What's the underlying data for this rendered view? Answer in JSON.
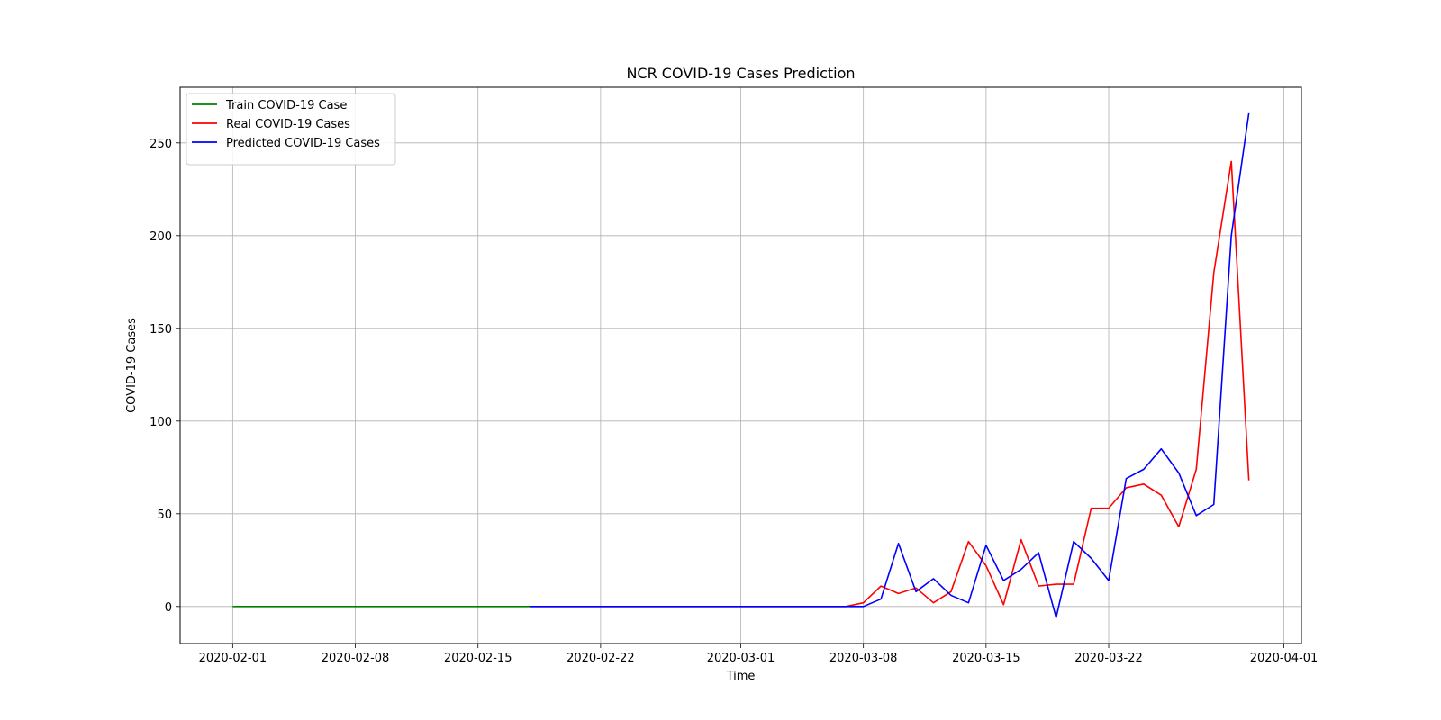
{
  "chart_data": {
    "type": "line",
    "title": "NCR COVID-19 Cases Prediction",
    "xlabel": "Time",
    "ylabel": "COVID-19 Cases",
    "xlim": [
      "2020-01-29",
      "2020-04-02"
    ],
    "ylim": [
      -20,
      280
    ],
    "x_ticks": [
      "2020-02-01",
      "2020-02-08",
      "2020-02-15",
      "2020-02-22",
      "2020-03-01",
      "2020-03-08",
      "2020-03-15",
      "2020-03-22",
      "2020-04-01"
    ],
    "y_ticks": [
      0,
      50,
      100,
      150,
      200,
      250
    ],
    "grid": true,
    "legend_position": "top-left",
    "series": [
      {
        "name": "Train COVID-19 Case",
        "color": "#008000",
        "x": [
          "2020-02-01",
          "2020-02-02",
          "2020-02-03",
          "2020-02-04",
          "2020-02-05",
          "2020-02-06",
          "2020-02-07",
          "2020-02-08",
          "2020-02-09",
          "2020-02-10",
          "2020-02-11",
          "2020-02-12",
          "2020-02-13",
          "2020-02-14",
          "2020-02-15",
          "2020-02-16",
          "2020-02-17",
          "2020-02-18"
        ],
        "values": [
          0,
          0,
          0,
          0,
          0,
          0,
          0,
          0,
          0,
          0,
          0,
          0,
          0,
          0,
          0,
          0,
          0,
          0
        ]
      },
      {
        "name": "Real COVID-19 Cases",
        "color": "#ff0000",
        "x": [
          "2020-02-18",
          "2020-02-19",
          "2020-02-20",
          "2020-02-21",
          "2020-02-22",
          "2020-02-23",
          "2020-02-24",
          "2020-02-25",
          "2020-02-26",
          "2020-02-27",
          "2020-02-28",
          "2020-02-29",
          "2020-03-01",
          "2020-03-02",
          "2020-03-03",
          "2020-03-04",
          "2020-03-05",
          "2020-03-06",
          "2020-03-07",
          "2020-03-08",
          "2020-03-09",
          "2020-03-10",
          "2020-03-11",
          "2020-03-12",
          "2020-03-13",
          "2020-03-14",
          "2020-03-15",
          "2020-03-16",
          "2020-03-17",
          "2020-03-18",
          "2020-03-19",
          "2020-03-20",
          "2020-03-21",
          "2020-03-22",
          "2020-03-23",
          "2020-03-24",
          "2020-03-25",
          "2020-03-26",
          "2020-03-27",
          "2020-03-28",
          "2020-03-29",
          "2020-03-30"
        ],
        "values": [
          0,
          0,
          0,
          0,
          0,
          0,
          0,
          0,
          0,
          0,
          0,
          0,
          0,
          0,
          0,
          0,
          0,
          0,
          0,
          2,
          11,
          7,
          10,
          2,
          8,
          35,
          22,
          1,
          36,
          11,
          12,
          12,
          53,
          53,
          64,
          66,
          60,
          43,
          74,
          180,
          240,
          68
        ]
      },
      {
        "name": "Predicted COVID-19 Cases",
        "color": "#0000ff",
        "x": [
          "2020-02-18",
          "2020-02-19",
          "2020-02-20",
          "2020-02-21",
          "2020-02-22",
          "2020-02-23",
          "2020-02-24",
          "2020-02-25",
          "2020-02-26",
          "2020-02-27",
          "2020-02-28",
          "2020-02-29",
          "2020-03-01",
          "2020-03-02",
          "2020-03-03",
          "2020-03-04",
          "2020-03-05",
          "2020-03-06",
          "2020-03-07",
          "2020-03-08",
          "2020-03-09",
          "2020-03-10",
          "2020-03-11",
          "2020-03-12",
          "2020-03-13",
          "2020-03-14",
          "2020-03-15",
          "2020-03-16",
          "2020-03-17",
          "2020-03-18",
          "2020-03-19",
          "2020-03-20",
          "2020-03-21",
          "2020-03-22",
          "2020-03-23",
          "2020-03-24",
          "2020-03-25",
          "2020-03-26",
          "2020-03-27",
          "2020-03-28",
          "2020-03-29",
          "2020-03-30"
        ],
        "values": [
          0,
          0,
          0,
          0,
          0,
          0,
          0,
          0,
          0,
          0,
          0,
          0,
          0,
          0,
          0,
          0,
          0,
          0,
          0,
          0,
          4,
          34,
          8,
          15,
          6,
          2,
          33,
          14,
          20,
          29,
          -6,
          35,
          26,
          14,
          69,
          74,
          85,
          72,
          49,
          55,
          200,
          266
        ]
      }
    ]
  }
}
